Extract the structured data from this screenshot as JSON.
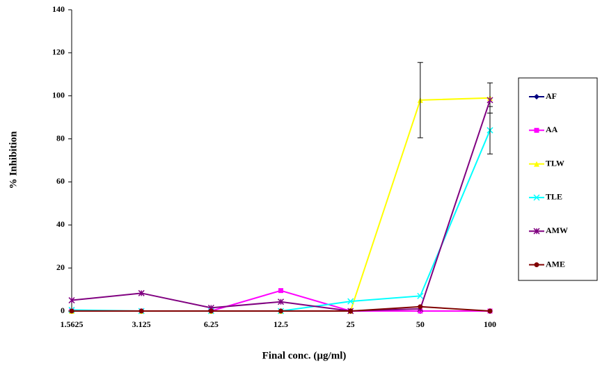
{
  "chart_data": {
    "type": "line",
    "x_label": "Final conc. (µg/ml)",
    "y_label": "% Inhibition",
    "categories": [
      "1.5625",
      "3.125",
      "6.25",
      "12.5",
      "25",
      "50",
      "100"
    ],
    "ylim": [
      0,
      140
    ],
    "yticks": [
      0,
      20,
      40,
      60,
      80,
      100,
      120,
      140
    ],
    "grid": false,
    "legend": "right",
    "series": [
      {
        "name": "AF",
        "color": "#000080",
        "marker": "diamond",
        "values": [
          0,
          0,
          0,
          0,
          0,
          0,
          0
        ]
      },
      {
        "name": "AA",
        "color": "#ff00ff",
        "marker": "square",
        "values": [
          0,
          0,
          0,
          9.5,
          0,
          0,
          0
        ]
      },
      {
        "name": "TLW",
        "color": "#ffff00",
        "marker": "triangle",
        "values": [
          0,
          0,
          0,
          0,
          0,
          98,
          99
        ],
        "errors": [
          null,
          null,
          null,
          null,
          null,
          17.5,
          7
        ]
      },
      {
        "name": "TLE",
        "color": "#00ffff",
        "marker": "x",
        "values": [
          0.5,
          0,
          0,
          0,
          4.5,
          7,
          84
        ],
        "errors": [
          null,
          null,
          null,
          null,
          null,
          null,
          11
        ]
      },
      {
        "name": "AMW",
        "color": "#800080",
        "marker": "star",
        "values": [
          5,
          8.3,
          1.5,
          4.3,
          0,
          1,
          98
        ]
      },
      {
        "name": "AME",
        "color": "#800000",
        "marker": "circle",
        "values": [
          0,
          0,
          0,
          0,
          0,
          2,
          0
        ]
      }
    ]
  }
}
